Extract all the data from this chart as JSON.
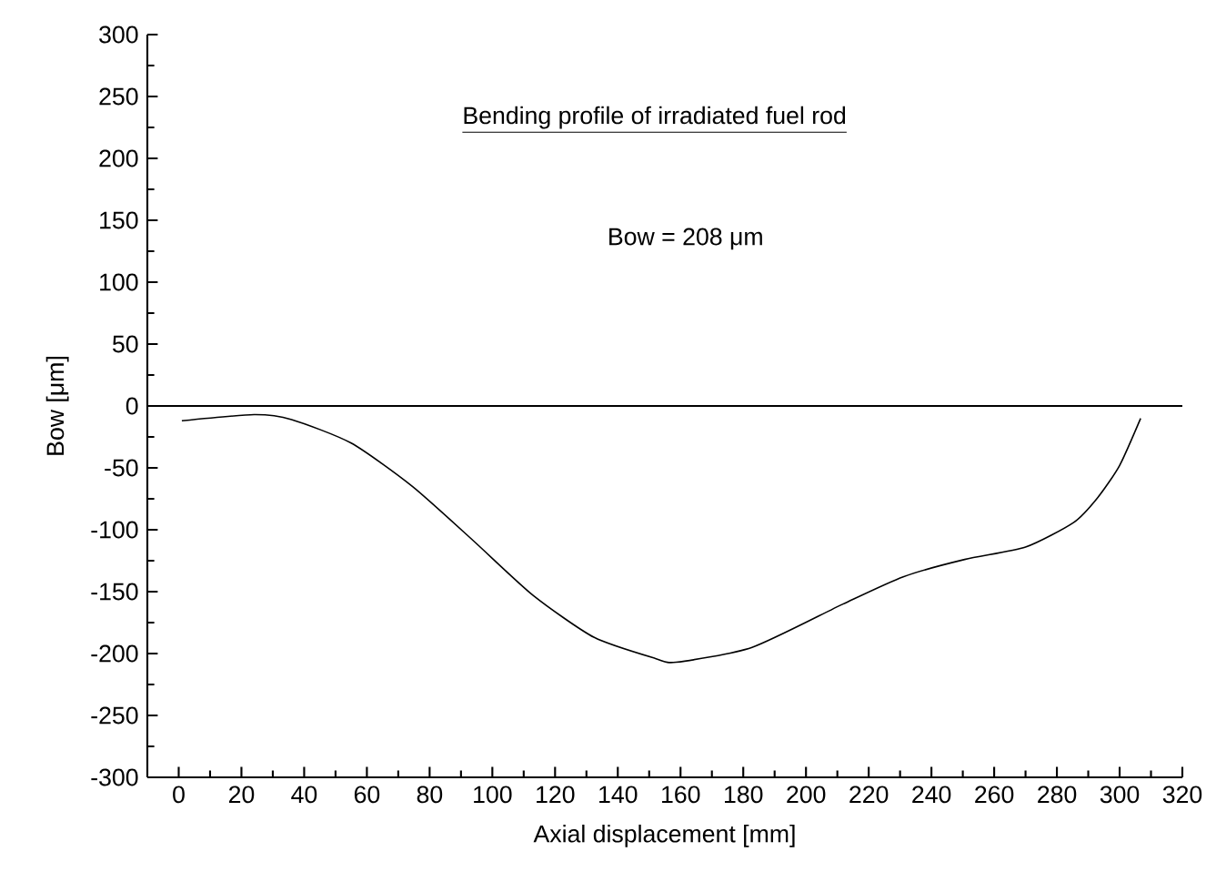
{
  "chart_data": {
    "type": "line",
    "title": "Bending profile of irradiated fuel rod",
    "xlabel": "Axial displacement  [mm]",
    "ylabel": "Bow  [μm]",
    "annotations": [
      "Bow = 208 μm"
    ],
    "x": [
      1,
      24,
      36,
      55,
      74.5,
      94,
      113,
      132.5,
      152,
      158.6,
      182.8,
      211.8,
      231,
      250.6,
      270,
      285.4,
      293,
      300,
      306.7
    ],
    "series": [
      {
        "color": "#000000",
        "values": [
          -12,
          -7,
          -11,
          -30,
          -65,
          -109,
          -153,
          -187,
          -204,
          -207,
          -195,
          -160,
          -138,
          -124,
          -114,
          -94,
          -74,
          -48,
          -10
        ]
      }
    ],
    "ref_lines": [
      {
        "axis": "y",
        "value": 0,
        "color": "#000000"
      }
    ],
    "xlim": [
      -10,
      320
    ],
    "ylim": [
      -300,
      300
    ],
    "xticks": [
      0,
      20,
      40,
      60,
      80,
      100,
      120,
      140,
      160,
      180,
      200,
      220,
      240,
      260,
      280,
      300,
      320
    ],
    "yticks": [
      -300,
      -250,
      -200,
      -150,
      -100,
      -50,
      0,
      50,
      100,
      150,
      200,
      250,
      300
    ]
  }
}
